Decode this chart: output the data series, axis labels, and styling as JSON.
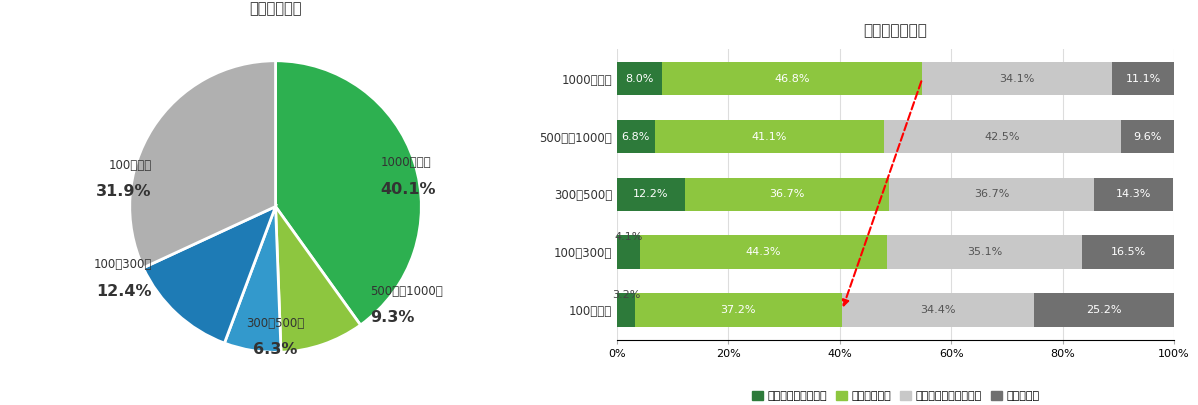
{
  "pie_title": "社員数の割合",
  "pie_labels": [
    "1000名以上",
    "500名〜1000名",
    "300〜500名",
    "100〜300名",
    "100名以下"
  ],
  "pie_values": [
    40.1,
    9.3,
    6.3,
    12.4,
    31.9
  ],
  "pie_colors": [
    "#2db050",
    "#8dc63f",
    "#3399cc",
    "#1e7bb5",
    "#b0b0b0"
  ],
  "bar_title": "社員数別満足度",
  "bar_categories": [
    "1000名以上",
    "500名〜1000名",
    "300〜500名",
    "100〜300名",
    "100名以下"
  ],
  "bar_data": {
    "とても満足している": [
      8.0,
      6.8,
      12.2,
      4.1,
      3.2
    ],
    "満足している": [
      46.8,
      41.1,
      36.7,
      44.3,
      37.2
    ],
    "どちらかというと不満": [
      34.1,
      42.5,
      36.7,
      35.1,
      34.4
    ],
    "かなり不満": [
      11.1,
      9.6,
      14.3,
      16.5,
      25.2
    ]
  },
  "bar_colors": {
    "とても満足している": "#2d7a3a",
    "満足している": "#8dc63f",
    "どちらかというと不満": "#c8c8c8",
    "かなり不満": "#707070"
  },
  "legend_order": [
    "とても満足している",
    "満足している",
    "どちらかというと不満",
    "かなり不満"
  ],
  "background_color": "#ffffff"
}
